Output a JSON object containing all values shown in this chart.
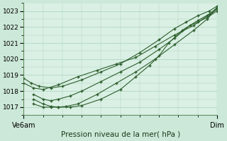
{
  "title": "Pression niveau de la mer( hPa )",
  "bg_color": "#cce8d8",
  "plot_bg_color": "#daf0e4",
  "grid_color": "#a8d0bc",
  "line_color": "#2d5e2d",
  "marker_color": "#2d5e2d",
  "ylim": [
    1016.5,
    1023.5
  ],
  "yticks": [
    1017,
    1018,
    1019,
    1020,
    1021,
    1022,
    1023
  ],
  "xlabel_left": "Ve6am",
  "xlabel_right": "Dim",
  "vline_color": "#6a9a6a",
  "series": [
    {
      "x": [
        0.0,
        0.05,
        0.1,
        0.18,
        0.28,
        0.38,
        0.48,
        0.58,
        0.68,
        0.78,
        0.88,
        0.95,
        1.0
      ],
      "y": [
        1018.5,
        1018.2,
        1018.1,
        1018.4,
        1018.9,
        1019.3,
        1019.7,
        1020.1,
        1020.8,
        1021.5,
        1022.1,
        1022.7,
        1023.1
      ]
    },
    {
      "x": [
        0.05,
        0.1,
        0.14,
        0.18,
        0.22,
        0.28,
        0.38,
        0.48,
        0.58,
        0.68,
        0.78,
        0.88,
        0.95,
        1.0
      ],
      "y": [
        1017.5,
        1017.2,
        1017.05,
        1017.0,
        1017.05,
        1017.2,
        1017.8,
        1018.5,
        1019.2,
        1020.0,
        1020.9,
        1021.8,
        1022.5,
        1023.2
      ]
    },
    {
      "x": [
        0.05,
        0.1,
        0.14,
        0.18,
        0.24,
        0.3,
        0.4,
        0.5,
        0.6,
        0.7,
        0.78,
        0.86,
        0.9,
        0.95,
        1.0
      ],
      "y": [
        1017.8,
        1017.5,
        1017.4,
        1017.5,
        1017.7,
        1018.0,
        1018.6,
        1019.2,
        1019.8,
        1020.6,
        1021.3,
        1022.1,
        1022.3,
        1022.6,
        1023.0
      ]
    },
    {
      "x": [
        0.0,
        0.04,
        0.08,
        0.14,
        0.2,
        0.3,
        0.4,
        0.5,
        0.6,
        0.7,
        0.78,
        0.84,
        0.9,
        0.96,
        1.0
      ],
      "y": [
        1018.8,
        1018.5,
        1018.3,
        1018.2,
        1018.3,
        1018.7,
        1019.2,
        1019.7,
        1020.4,
        1021.2,
        1021.9,
        1022.3,
        1022.7,
        1023.0,
        1023.3
      ]
    },
    {
      "x": [
        0.05,
        0.1,
        0.14,
        0.18,
        0.24,
        0.3,
        0.4,
        0.5,
        0.58,
        0.65,
        0.7,
        0.75,
        0.82,
        0.9,
        0.96,
        1.0
      ],
      "y": [
        1017.2,
        1017.0,
        1017.0,
        1017.0,
        1017.0,
        1017.1,
        1017.5,
        1018.1,
        1018.9,
        1019.6,
        1020.2,
        1021.0,
        1021.8,
        1022.4,
        1022.8,
        1023.2
      ]
    }
  ]
}
